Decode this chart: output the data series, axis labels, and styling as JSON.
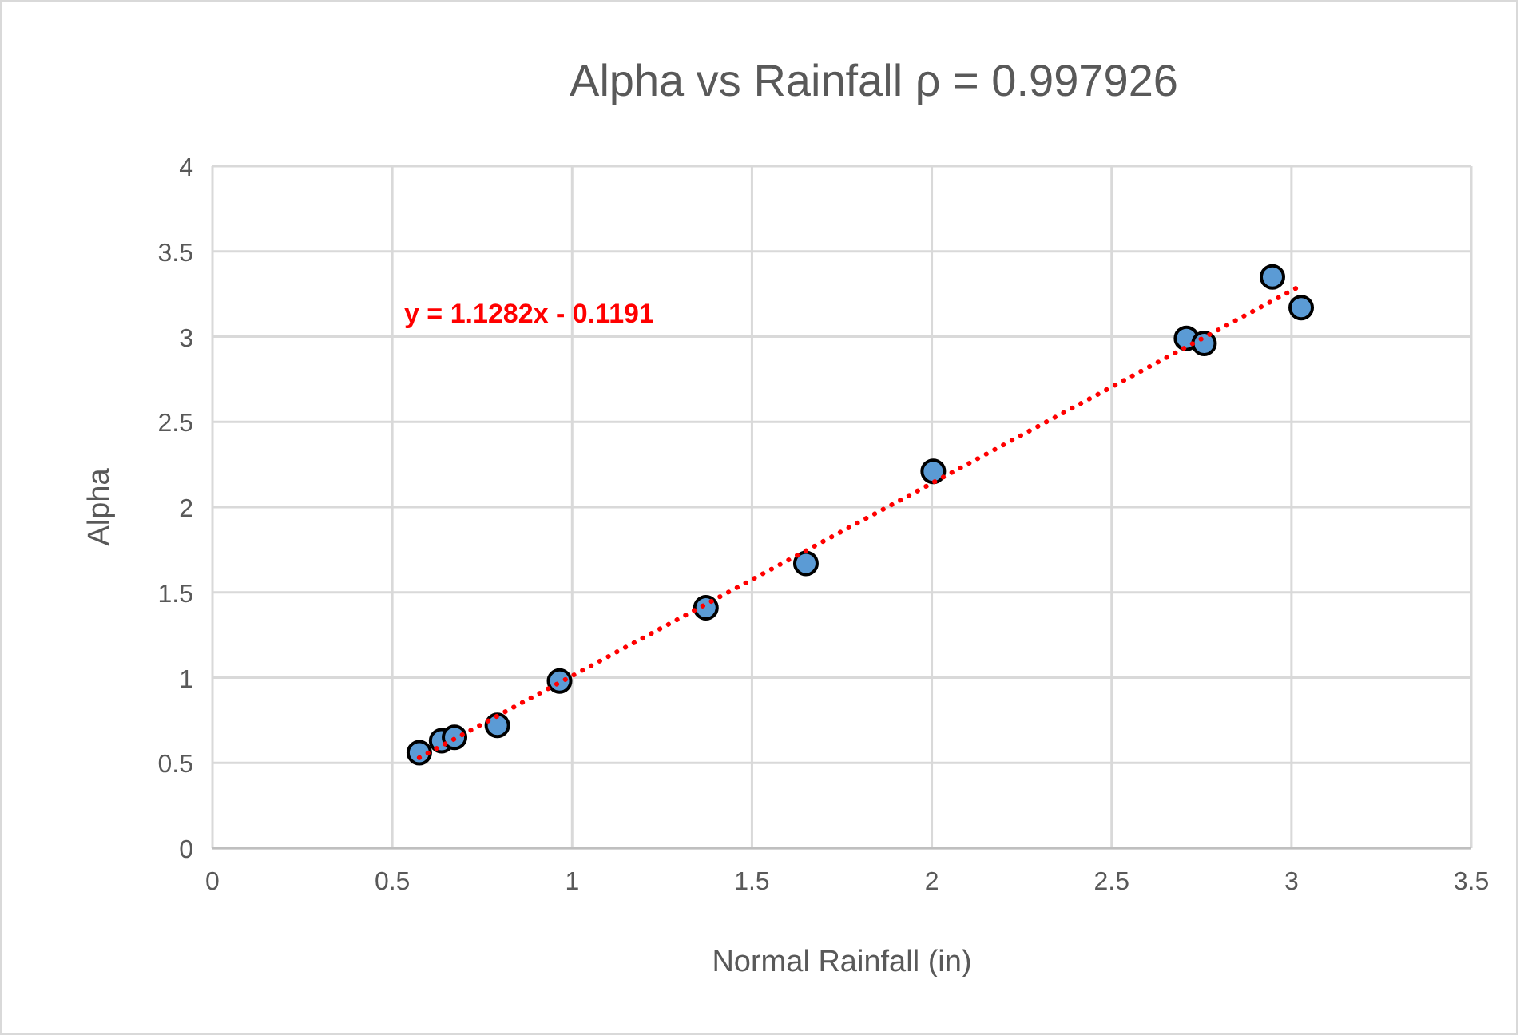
{
  "chart_data": {
    "type": "scatter",
    "title": "Alpha vs Rainfall  ρ = 0.997926",
    "xlabel": "Normal Rainfall (in)",
    "ylabel": "Alpha",
    "xlim": [
      0,
      3.5
    ],
    "xticks": [
      0,
      0.5,
      1,
      1.5,
      2,
      2.5,
      3,
      3.5
    ],
    "ylim": [
      0,
      4
    ],
    "yticks": [
      0,
      0.5,
      1,
      1.5,
      2,
      2.5,
      3,
      3.5,
      4
    ],
    "grid": true,
    "marker": "circle",
    "annotations": [
      "y = 1.1282x - 0.1191"
    ],
    "series": [
      {
        "color": "#5b9bd5",
        "x": [
          0.575,
          0.637,
          0.673,
          0.792,
          0.965,
          1.372,
          1.65,
          2.004,
          2.708,
          2.757,
          2.947,
          3.027
        ],
        "values": [
          0.56,
          0.63,
          0.65,
          0.72,
          0.98,
          1.41,
          1.67,
          2.21,
          2.99,
          2.96,
          3.35,
          3.17
        ]
      },
      {
        "type": "line",
        "color": "#ff0000",
        "line_style": "dotted",
        "marker": "none",
        "x": [
          0.575,
          3.027
        ],
        "values": [
          0.53,
          3.3
        ]
      }
    ]
  }
}
